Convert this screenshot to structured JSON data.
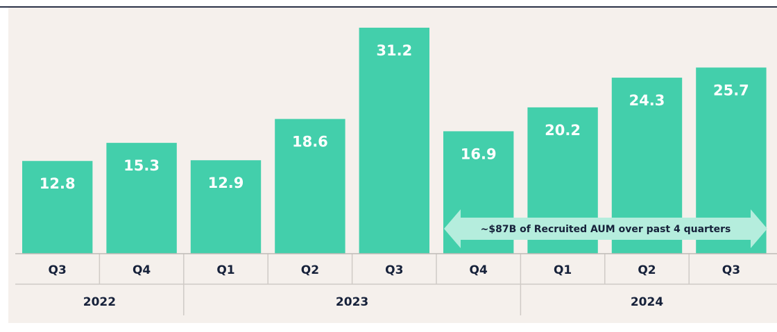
{
  "chart_data": {
    "type": "bar",
    "groups": [
      {
        "name": "2022",
        "categories": [
          "Q3",
          "Q4"
        ]
      },
      {
        "name": "2023",
        "categories": [
          "Q1",
          "Q2",
          "Q3",
          "Q4"
        ]
      },
      {
        "name": "2024",
        "categories": [
          "Q1",
          "Q2",
          "Q3"
        ]
      }
    ],
    "values": [
      12.8,
      15.3,
      12.9,
      18.6,
      31.2,
      16.9,
      20.2,
      24.3,
      25.7
    ],
    "color": "#43cfab",
    "ylim": [
      0,
      35
    ],
    "annotation": "~$87B of Recruited AUM over past 4 quarters"
  }
}
